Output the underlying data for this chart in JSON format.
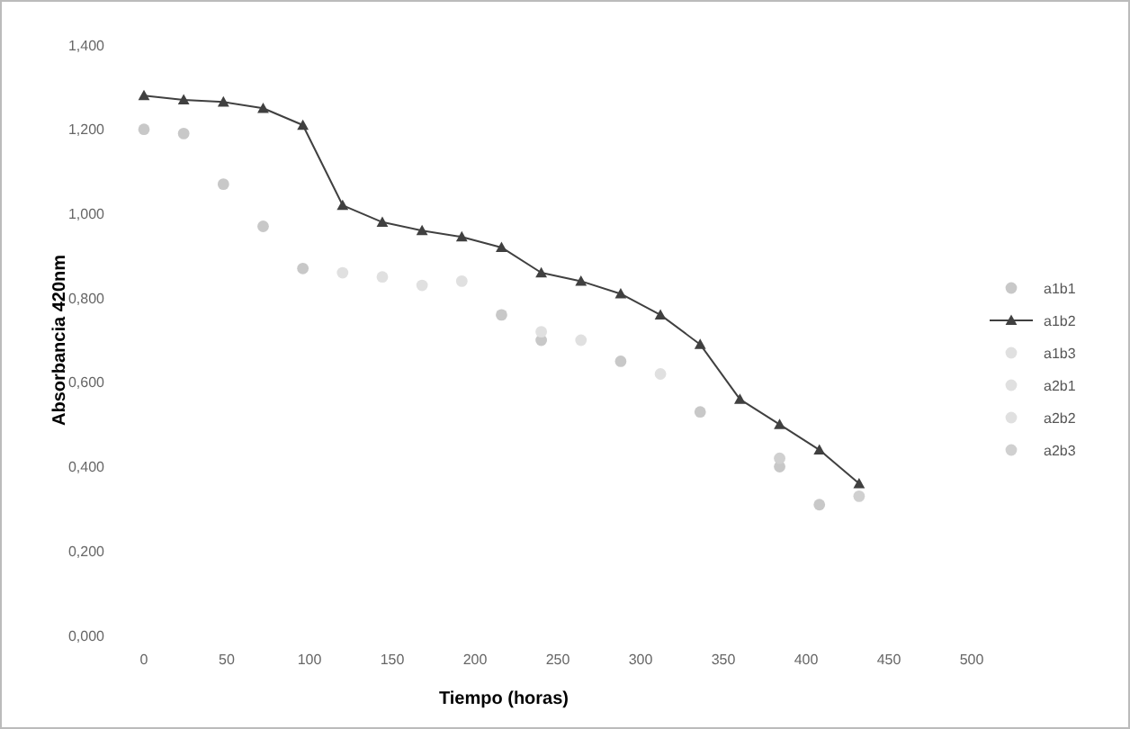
{
  "chart_data": {
    "type": "scatter",
    "xlabel": "Tiempo (horas)",
    "ylabel": "Absorbancia 420nm",
    "legend": "right",
    "grid": false,
    "x": [
      0,
      24,
      48,
      72,
      96,
      120,
      144,
      168,
      192,
      216,
      240,
      264,
      288,
      312,
      336,
      360,
      384,
      408,
      432
    ],
    "xlim": [
      0,
      500
    ],
    "xticks": [
      0,
      50,
      100,
      150,
      200,
      250,
      300,
      350,
      400,
      450,
      500
    ],
    "ylim": [
      0,
      1.4
    ],
    "yticks": [
      {
        "value": 0,
        "label": "0,000"
      },
      {
        "value": 0.2,
        "label": "0,200"
      },
      {
        "value": 0.4,
        "label": "0,400"
      },
      {
        "value": 0.6,
        "label": "0,600"
      },
      {
        "value": 0.8,
        "label": "0,800"
      },
      {
        "value": 1,
        "label": "1,000"
      },
      {
        "value": 1.2,
        "label": "1,200"
      },
      {
        "value": 1.4,
        "label": "1,400"
      }
    ],
    "series": [
      {
        "name": "a1b1",
        "color": "#c8c8c8",
        "marker": "circle",
        "values": [
          1.2,
          1.19,
          1.07,
          0.97,
          0.87,
          null,
          null,
          null,
          null,
          0.76,
          0.7,
          null,
          0.65,
          null,
          0.53,
          null,
          0.4,
          0.31,
          null
        ]
      },
      {
        "name": "a1b2",
        "color": "#404040",
        "type": "line",
        "marker": "triangle",
        "line_style": "solid",
        "values": [
          1.28,
          1.27,
          1.265,
          1.25,
          1.21,
          1.02,
          0.98,
          0.96,
          0.945,
          0.92,
          0.86,
          0.84,
          0.81,
          0.76,
          0.69,
          0.56,
          0.5,
          0.44,
          0.36
        ]
      },
      {
        "name": "a1b3",
        "color": "#e0e0e0",
        "marker": "circle",
        "values": [
          null,
          null,
          null,
          null,
          null,
          0.86,
          0.85,
          0.83,
          null,
          null,
          null,
          null,
          null,
          null,
          null,
          null,
          null,
          null,
          null
        ]
      },
      {
        "name": "a2b1",
        "color": "#e0e0e0",
        "marker": "circle",
        "values": [
          null,
          null,
          null,
          null,
          null,
          null,
          null,
          null,
          0.84,
          null,
          0.72,
          0.7,
          null,
          null,
          null,
          null,
          null,
          null,
          null
        ]
      },
      {
        "name": "a2b2",
        "color": "#e0e0e0",
        "marker": "circle",
        "values": [
          null,
          null,
          null,
          null,
          null,
          null,
          null,
          null,
          null,
          null,
          null,
          null,
          null,
          0.62,
          null,
          null,
          null,
          null,
          null
        ]
      },
      {
        "name": "a2b3",
        "color": "#d0d0d0",
        "marker": "circle",
        "values": [
          null,
          null,
          null,
          null,
          null,
          null,
          null,
          null,
          null,
          null,
          null,
          null,
          null,
          null,
          null,
          null,
          0.42,
          null,
          0.33
        ]
      }
    ]
  }
}
